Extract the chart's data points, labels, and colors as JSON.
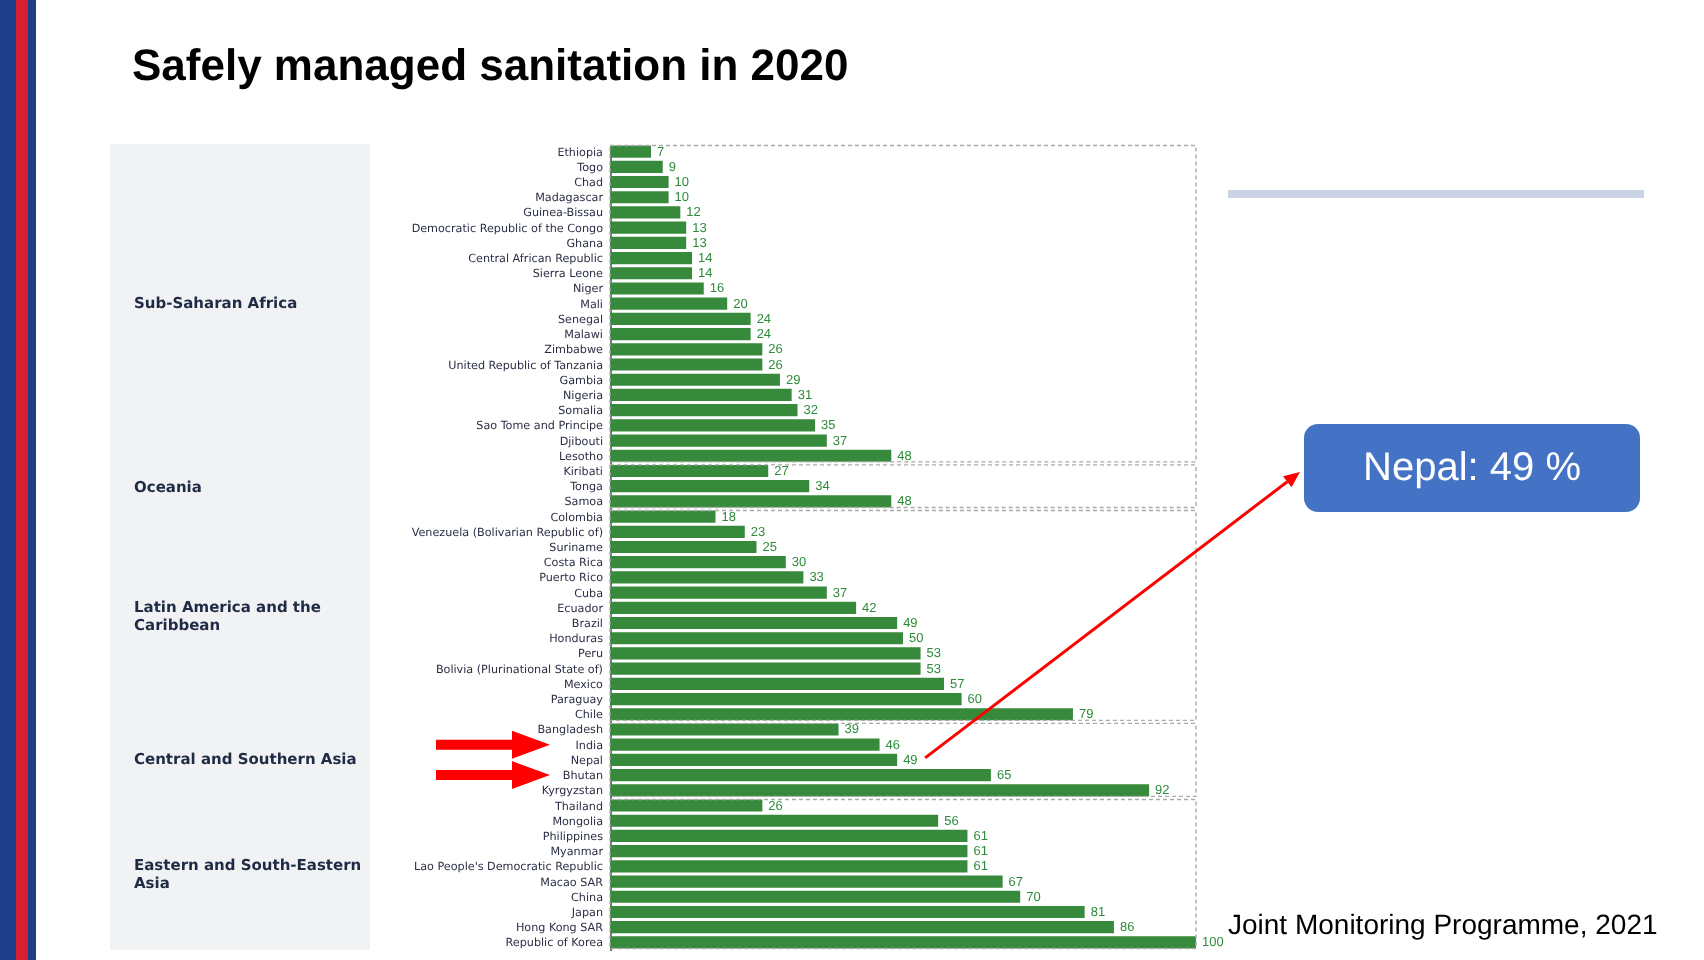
{
  "chart_data": {
    "type": "bar",
    "orientation": "horizontal",
    "title": "Safely managed sanitation in 2020",
    "categories": [
      "Ethiopia",
      "Togo",
      "Chad",
      "Madagascar",
      "Guinea-Bissau",
      "Democratic Republic of the Congo",
      "Ghana",
      "Central African Republic",
      "Sierra Leone",
      "Niger",
      "Mali",
      "Senegal",
      "Malawi",
      "Zimbabwe",
      "United Republic of Tanzania",
      "Gambia",
      "Nigeria",
      "Somalia",
      "Sao Tome and Principe",
      "Djibouti",
      "Lesotho",
      "Kiribati",
      "Tonga",
      "Samoa",
      "Colombia",
      "Venezuela (Bolivarian Republic of)",
      "Suriname",
      "Costa Rica",
      "Puerto Rico",
      "Cuba",
      "Ecuador",
      "Brazil",
      "Honduras",
      "Peru",
      "Bolivia (Plurinational State of)",
      "Mexico",
      "Paraguay",
      "Chile",
      "Bangladesh",
      "India",
      "Nepal",
      "Bhutan",
      "Kyrgyzstan",
      "Thailand",
      "Mongolia",
      "Philippines",
      "Myanmar",
      "Lao People's Democratic Republic",
      "Macao SAR",
      "China",
      "Japan",
      "Hong Kong SAR",
      "Republic of Korea"
    ],
    "values": [
      7,
      9,
      10,
      10,
      12,
      13,
      13,
      14,
      14,
      16,
      20,
      24,
      24,
      26,
      26,
      29,
      31,
      32,
      35,
      37,
      48,
      27,
      34,
      48,
      18,
      23,
      25,
      30,
      33,
      37,
      42,
      49,
      50,
      53,
      53,
      57,
      60,
      79,
      39,
      46,
      49,
      65,
      92,
      26,
      56,
      61,
      61,
      61,
      67,
      70,
      81,
      86,
      100
    ],
    "color": "#378a3c",
    "data_labels": true,
    "tick_labels": "y",
    "annotations": [
      "Sub-Saharan Africa",
      "Oceania",
      "Latin America and the Caribbean",
      "Central and Southern Asia",
      "Eastern and South-Eastern Asia",
      "Nepal: 49 %",
      "Joint Monitoring Programme, 2021"
    ]
  }
}
